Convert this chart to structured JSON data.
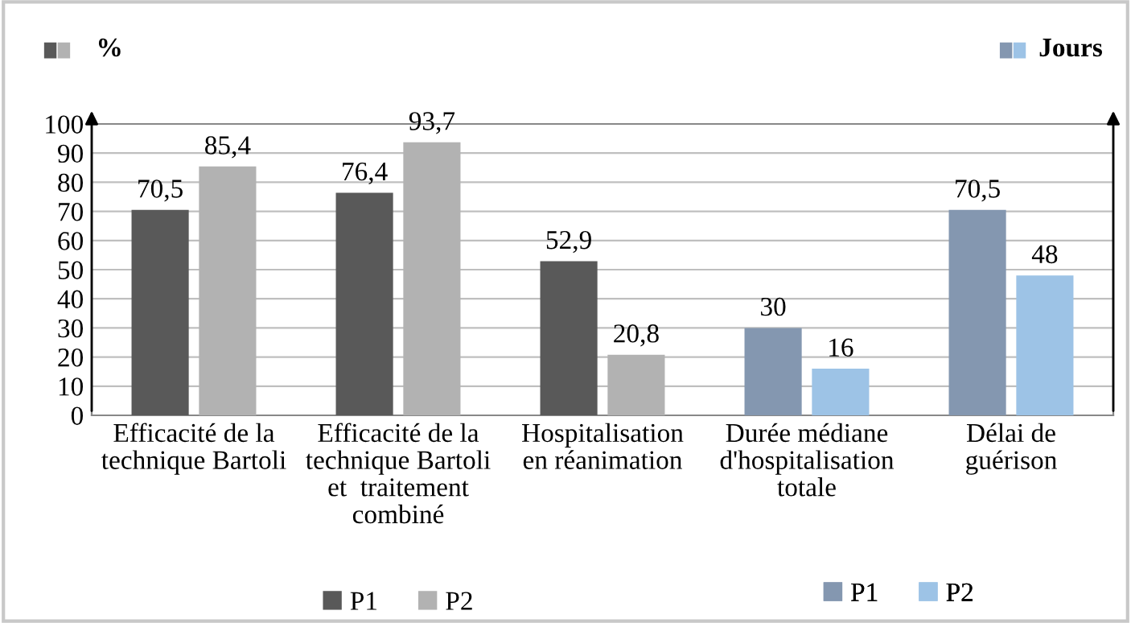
{
  "chart_data": {
    "type": "bar",
    "categories": [
      "Efficacité de la\ntechnique Bartoli",
      "Efficacité de la\ntechnique Bartoli\net  traitement\ncombiné",
      "Hospitalisation\nen réanimation",
      "Durée médiane\nd'hospitalisation\ntotale",
      "Délai de\nguérison"
    ],
    "series": [
      {
        "name": "P1",
        "colors": [
          "#595959",
          "#595959",
          "#595959",
          "#8497b0",
          "#8497b0"
        ],
        "values": [
          70.5,
          76.4,
          52.9,
          30,
          70.5
        ],
        "value_labels": [
          "70,5",
          "76,4",
          "52,9",
          "30",
          "70,5"
        ]
      },
      {
        "name": "P2",
        "colors": [
          "#b2b2b2",
          "#b2b2b2",
          "#b2b2b2",
          "#9dc3e6",
          "#9dc3e6"
        ],
        "values": [
          85.4,
          93.7,
          20.8,
          16,
          48
        ],
        "value_labels": [
          "85,4",
          "93,7",
          "20,8",
          "16",
          "48"
        ]
      }
    ],
    "annotations": [
      "%",
      "Jours"
    ],
    "ylim": [
      0,
      100
    ],
    "yticks": [
      0,
      10,
      20,
      30,
      40,
      50,
      60,
      70,
      80,
      90,
      100
    ],
    "grid": "y",
    "legend": "bottom"
  }
}
